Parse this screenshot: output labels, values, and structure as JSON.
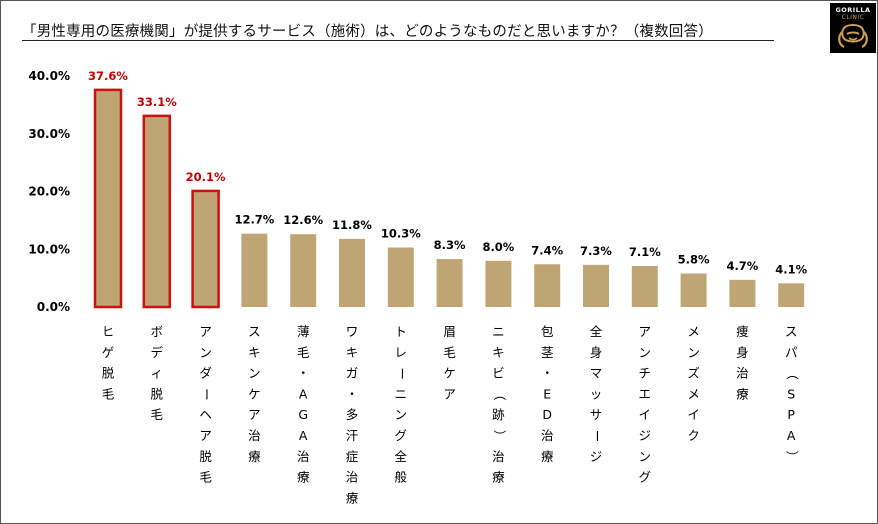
{
  "title": "「男性専用の医療機関」が提供するサービス（施術）は、どのようなものだと思いますか？（複数回答）",
  "logo": {
    "line1": "GORILLA",
    "line2": "CLINIC",
    "icon": "gorilla-head-icon"
  },
  "colors": {
    "bar_fill": "#bfa474",
    "highlight_border": "#cc1111",
    "highlight_label": "#c00000",
    "label": "#000000"
  },
  "chart_data": {
    "type": "bar",
    "categories": [
      "ヒゲ脱毛",
      "ボディ脱毛",
      "アンダーヘア脱毛",
      "スキンケア治療",
      "薄毛・AGA治療",
      "ワキガ・多汗症治療",
      "トレーニング全般",
      "眉毛ケア",
      "ニキビ（跡）治療",
      "包茎・ED治療",
      "全身マッサージ",
      "アンチエイジング",
      "メンズメイク",
      "痩身治療",
      "スパ（SPA）"
    ],
    "values": [
      37.6,
      33.1,
      20.1,
      12.7,
      12.6,
      11.8,
      10.3,
      8.3,
      8.0,
      7.4,
      7.3,
      7.1,
      5.8,
      4.7,
      4.1
    ],
    "value_labels": [
      "37.6%",
      "33.1%",
      "20.1%",
      "12.7%",
      "12.6%",
      "11.8%",
      "10.3%",
      "8.3%",
      "8.0%",
      "7.4%",
      "7.3%",
      "7.1%",
      "5.8%",
      "4.7%",
      "4.1%"
    ],
    "highlighted": [
      true,
      true,
      true,
      false,
      false,
      false,
      false,
      false,
      false,
      false,
      false,
      false,
      false,
      false,
      false
    ],
    "yticks": [
      "0.0%",
      "10.0%",
      "20.0%",
      "30.0%",
      "40.0%"
    ],
    "ylim": [
      0,
      40
    ],
    "xlabel": "",
    "ylabel": "",
    "grid": false,
    "legend": "none"
  }
}
